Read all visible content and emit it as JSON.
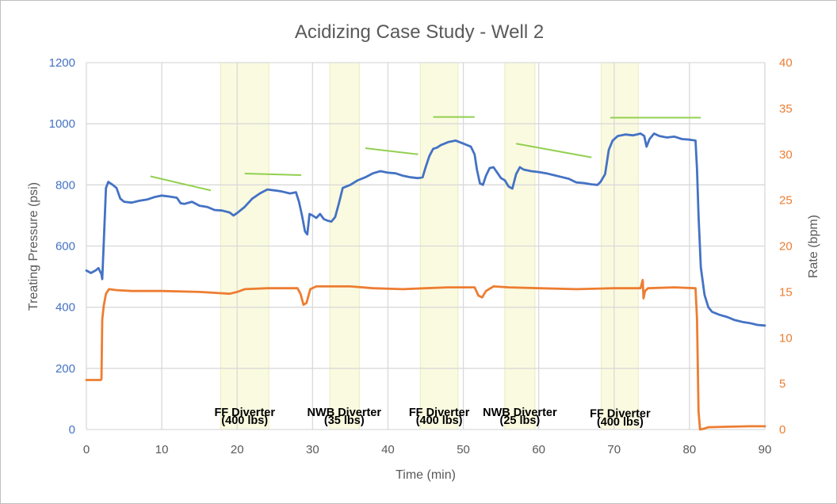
{
  "chart_data": {
    "type": "line",
    "title": "Acidizing Case Study - Well 2",
    "xlabel": "Time (min)",
    "ylabel": "Treating Pressure (psi)",
    "y2label": "Rate (bpm)",
    "xlim": [
      0,
      90
    ],
    "ylim": [
      0,
      1200
    ],
    "y2lim": [
      0,
      40
    ],
    "x_ticks": [
      "0",
      "10",
      "20",
      "30",
      "40",
      "50",
      "60",
      "70",
      "80",
      "90"
    ],
    "y_ticks": [
      "0",
      "200",
      "400",
      "600",
      "800",
      "1000",
      "1200"
    ],
    "y2_ticks": [
      "0",
      "5",
      "10",
      "15",
      "20",
      "25",
      "30",
      "35",
      "40"
    ],
    "grid": true,
    "colors": {
      "pressure": "#4472c4",
      "rate": "#ed7d31",
      "trend": "#92d050",
      "diverter_band": "#fafae0",
      "grid": "#d9d9d9"
    },
    "series": [
      {
        "axis": "left",
        "points": [
          [
            0,
            520
          ],
          [
            0.6,
            512
          ],
          [
            1.2,
            520
          ],
          [
            1.6,
            528
          ],
          [
            2.0,
            508
          ],
          [
            2.1,
            492
          ],
          [
            2.3,
            610
          ],
          [
            2.6,
            790
          ],
          [
            2.9,
            810
          ],
          [
            3.5,
            800
          ],
          [
            4.0,
            790
          ],
          [
            4.5,
            755
          ],
          [
            5.0,
            745
          ],
          [
            6.0,
            742
          ],
          [
            7.0,
            748
          ],
          [
            8.0,
            752
          ],
          [
            9.0,
            760
          ],
          [
            10.0,
            765
          ],
          [
            11.0,
            762
          ],
          [
            12.0,
            758
          ],
          [
            12.5,
            740
          ],
          [
            13.0,
            738
          ],
          [
            14.0,
            745
          ],
          [
            15.0,
            732
          ],
          [
            16.0,
            728
          ],
          [
            17.0,
            718
          ],
          [
            18.0,
            716
          ],
          [
            19.0,
            710
          ],
          [
            19.5,
            700
          ],
          [
            20.0,
            708
          ],
          [
            21.0,
            728
          ],
          [
            22.0,
            755
          ],
          [
            23.0,
            772
          ],
          [
            24.0,
            785
          ],
          [
            25.0,
            782
          ],
          [
            26.0,
            778
          ],
          [
            27.0,
            772
          ],
          [
            27.8,
            776
          ],
          [
            28.2,
            745
          ],
          [
            28.6,
            700
          ],
          [
            29.0,
            648
          ],
          [
            29.3,
            638
          ],
          [
            29.6,
            705
          ],
          [
            30.0,
            700
          ],
          [
            30.5,
            692
          ],
          [
            31.0,
            705
          ],
          [
            31.5,
            688
          ],
          [
            32.0,
            683
          ],
          [
            32.5,
            680
          ],
          [
            33.0,
            695
          ],
          [
            33.5,
            740
          ],
          [
            34.0,
            790
          ],
          [
            35.0,
            800
          ],
          [
            36.0,
            815
          ],
          [
            37.0,
            825
          ],
          [
            38.0,
            838
          ],
          [
            39.0,
            845
          ],
          [
            40.0,
            840
          ],
          [
            41.0,
            838
          ],
          [
            42.0,
            830
          ],
          [
            43.0,
            825
          ],
          [
            44.0,
            822
          ],
          [
            44.6,
            825
          ],
          [
            45.0,
            858
          ],
          [
            45.5,
            895
          ],
          [
            46.0,
            918
          ],
          [
            46.5,
            922
          ],
          [
            47.0,
            930
          ],
          [
            48.0,
            940
          ],
          [
            49.0,
            945
          ],
          [
            50.0,
            935
          ],
          [
            51.0,
            925
          ],
          [
            51.5,
            900
          ],
          [
            51.8,
            850
          ],
          [
            52.2,
            805
          ],
          [
            52.6,
            800
          ],
          [
            53.0,
            830
          ],
          [
            53.5,
            855
          ],
          [
            54.0,
            858
          ],
          [
            54.5,
            840
          ],
          [
            55.0,
            822
          ],
          [
            55.5,
            815
          ],
          [
            56.0,
            795
          ],
          [
            56.5,
            788
          ],
          [
            57.0,
            835
          ],
          [
            57.5,
            858
          ],
          [
            58.0,
            850
          ],
          [
            59.0,
            845
          ],
          [
            60.0,
            842
          ],
          [
            61.0,
            838
          ],
          [
            62.0,
            832
          ],
          [
            63.0,
            826
          ],
          [
            64.0,
            820
          ],
          [
            65.0,
            808
          ],
          [
            66.0,
            806
          ],
          [
            67.0,
            802
          ],
          [
            67.8,
            800
          ],
          [
            68.2,
            810
          ],
          [
            68.8,
            835
          ],
          [
            69.3,
            915
          ],
          [
            69.8,
            945
          ],
          [
            70.5,
            960
          ],
          [
            71.5,
            965
          ],
          [
            72.5,
            962
          ],
          [
            73.0,
            965
          ],
          [
            73.5,
            968
          ],
          [
            74.0,
            960
          ],
          [
            74.3,
            925
          ],
          [
            74.7,
            950
          ],
          [
            75.3,
            968
          ],
          [
            76.0,
            960
          ],
          [
            77.0,
            955
          ],
          [
            78.0,
            958
          ],
          [
            79.0,
            950
          ],
          [
            80.0,
            948
          ],
          [
            80.8,
            945
          ],
          [
            81.0,
            850
          ],
          [
            81.2,
            700
          ],
          [
            81.5,
            530
          ],
          [
            82.0,
            440
          ],
          [
            82.5,
            400
          ],
          [
            83.0,
            385
          ],
          [
            84.0,
            375
          ],
          [
            85.0,
            368
          ],
          [
            86.0,
            358
          ],
          [
            87.0,
            352
          ],
          [
            88.0,
            348
          ],
          [
            89.0,
            342
          ],
          [
            90.0,
            340
          ]
        ]
      },
      {
        "axis": "right",
        "points": [
          [
            0,
            5.4
          ],
          [
            1.9,
            5.4
          ],
          [
            2.0,
            5.5
          ],
          [
            2.1,
            12.0
          ],
          [
            2.3,
            13.5
          ],
          [
            2.6,
            14.8
          ],
          [
            3.0,
            15.3
          ],
          [
            4.0,
            15.2
          ],
          [
            6.0,
            15.1
          ],
          [
            10.0,
            15.1
          ],
          [
            15.0,
            15.0
          ],
          [
            17.0,
            14.9
          ],
          [
            19.0,
            14.8
          ],
          [
            20.0,
            15.0
          ],
          [
            21.0,
            15.3
          ],
          [
            24.0,
            15.4
          ],
          [
            28.0,
            15.4
          ],
          [
            28.4,
            14.8
          ],
          [
            28.8,
            13.6
          ],
          [
            29.2,
            13.8
          ],
          [
            29.7,
            15.3
          ],
          [
            30.5,
            15.6
          ],
          [
            35.0,
            15.6
          ],
          [
            38.0,
            15.4
          ],
          [
            42.0,
            15.3
          ],
          [
            45.0,
            15.4
          ],
          [
            48.0,
            15.5
          ],
          [
            51.5,
            15.5
          ],
          [
            52.0,
            14.6
          ],
          [
            52.5,
            14.4
          ],
          [
            53.0,
            15.1
          ],
          [
            54.0,
            15.6
          ],
          [
            56.0,
            15.5
          ],
          [
            60.0,
            15.4
          ],
          [
            65.0,
            15.3
          ],
          [
            70.0,
            15.4
          ],
          [
            73.5,
            15.4
          ],
          [
            73.8,
            16.3
          ],
          [
            73.9,
            14.3
          ],
          [
            74.1,
            15.1
          ],
          [
            74.5,
            15.4
          ],
          [
            78.0,
            15.5
          ],
          [
            80.8,
            15.4
          ],
          [
            81.0,
            12.0
          ],
          [
            81.2,
            2.0
          ],
          [
            81.4,
            0.0
          ],
          [
            82.0,
            0.1
          ],
          [
            82.5,
            0.25
          ],
          [
            85.0,
            0.3
          ],
          [
            88.0,
            0.35
          ],
          [
            90.0,
            0.35
          ]
        ]
      }
    ],
    "diverter_stages": [
      {
        "start": 17.8,
        "end": 24.2,
        "line1": "FF Diverter",
        "line2": "(400  lbs)",
        "label_x": 21.0,
        "label_y1": 1.45,
        "label_y2": 0.6
      },
      {
        "start": 32.3,
        "end": 36.2,
        "line1": "NWB Diverter",
        "line2": "(35 lbs)",
        "label_x": 34.2,
        "label_y1": 1.45,
        "label_y2": 0.6
      },
      {
        "start": 44.3,
        "end": 49.3,
        "line1": "FF Diverter",
        "line2": "(400 lbs)",
        "label_x": 46.8,
        "label_y1": 1.45,
        "label_y2": 0.6
      },
      {
        "start": 55.5,
        "end": 59.5,
        "line1": "NWB Diverter",
        "line2": "(25 lbs)",
        "label_x": 57.5,
        "label_y1": 1.45,
        "label_y2": 0.6
      },
      {
        "start": 68.3,
        "end": 73.2,
        "line1": "FF Diverter",
        "line2": "(400 lbs)",
        "label_x": 70.8,
        "label_y1": 1.35,
        "label_y2": 0.45
      }
    ],
    "trend_lines": [
      {
        "x1": 8.5,
        "y1": 828,
        "x2": 16.5,
        "y2": 782
      },
      {
        "x1": 21.0,
        "y1": 837,
        "x2": 28.5,
        "y2": 832
      },
      {
        "x1": 37.0,
        "y1": 920,
        "x2": 44.0,
        "y2": 900
      },
      {
        "x1": 46.0,
        "y1": 1022,
        "x2": 51.5,
        "y2": 1022
      },
      {
        "x1": 57.0,
        "y1": 935,
        "x2": 67.0,
        "y2": 890
      },
      {
        "x1": 69.5,
        "y1": 1020,
        "x2": 81.5,
        "y2": 1020
      }
    ]
  }
}
